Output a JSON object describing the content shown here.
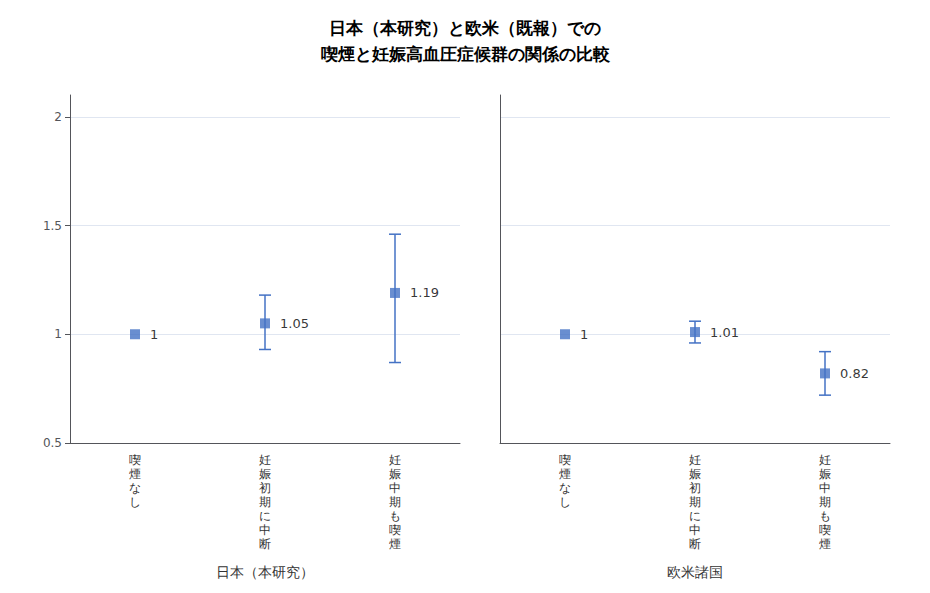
{
  "chart_data": {
    "type": "scatter",
    "title": "日本（本研究）と欧米（既報）での\n喫煙と妊娠高血圧症候群の関係の比較",
    "color": "#4472C4",
    "marker": "square",
    "data_labels": true,
    "grid": true,
    "ylim": [
      0.5,
      2.1
    ],
    "yticks": [
      0.5,
      1,
      1.5,
      2
    ],
    "groups": [
      {
        "label": "日本（本研究）",
        "categories": [
          "喫\n煙\nな\nし",
          "妊\n娠\n初\n期\nに\n中\n断",
          "妊\n娠\n中\n期\nも\n喫\n煙"
        ],
        "values": [
          1.0,
          1.05,
          1.19
        ],
        "ci_lower": [
          null,
          0.93,
          0.87
        ],
        "ci_upper": [
          null,
          1.18,
          1.46
        ]
      },
      {
        "label": "欧米諸国",
        "categories": [
          "喫\n煙\nな\nし",
          "妊\n娠\n初\n期\nに\n中\n断",
          "妊\n娠\n中\n期\nも\n喫\n煙"
        ],
        "values": [
          1.0,
          1.01,
          0.82
        ],
        "ci_lower": [
          null,
          0.96,
          0.72
        ],
        "ci_upper": [
          null,
          1.06,
          0.92
        ]
      }
    ]
  }
}
